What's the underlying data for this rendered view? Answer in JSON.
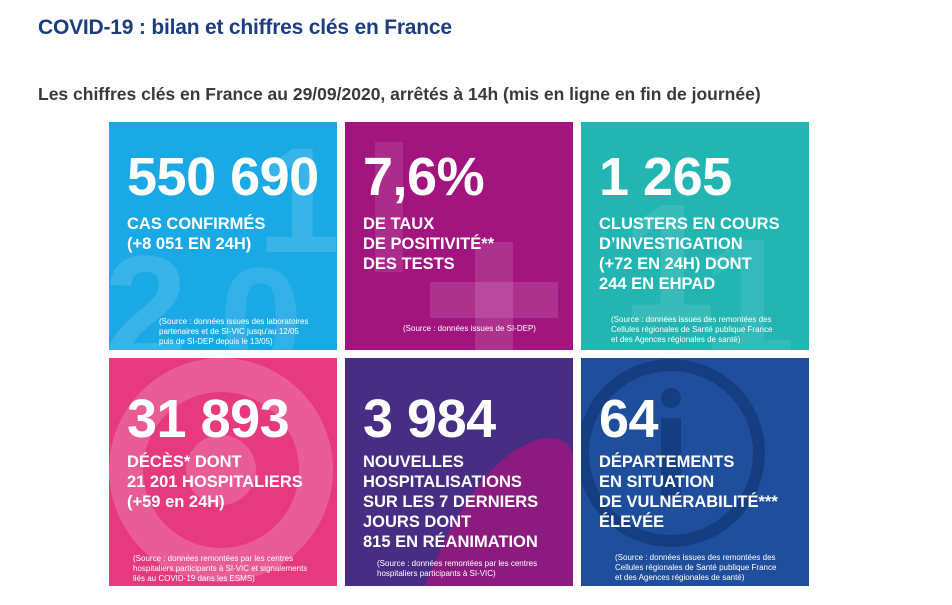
{
  "page": {
    "title": "COVID-19 : bilan et chiffres clés en France",
    "subtitle": "Les chiffres clés en France au 29/09/2020, arrêtés à 14h (mis en ligne en fin de journée)"
  },
  "colors": {
    "title": "#1d3e7e",
    "cases": "#1ba9e6",
    "positivity": "#a2157e",
    "clusters": "#23b5b2",
    "deaths": "#e6397e",
    "hospitalisations": "#482d84",
    "departments": "#1f4f9c"
  },
  "cards": [
    {
      "value": "550 690",
      "lines": [
        "CAS CONFIRMÉS",
        "(+8 051 EN 24H)"
      ],
      "source": [
        "(Source : données issues des laboratoires",
        "partenaires et de SI-VIC jusqu'au 12/05",
        "puis de SI-DEP depuis le 13/05)"
      ]
    },
    {
      "value": "7,6%",
      "lines": [
        "DE TAUX",
        "DE POSITIVITÉ**",
        "DES TESTS"
      ],
      "source": [
        "(Source : données issues de SI-DEP)"
      ]
    },
    {
      "value": "1 265",
      "lines": [
        "CLUSTERS EN COURS",
        "D’INVESTIGATION",
        "(+72 EN 24H) DONT",
        "244 EN EHPAD"
      ],
      "source": [
        "(Source : données issues des remontées des",
        "Cellules régionales de Santé publique France",
        "et des Agences régionales de santé)"
      ]
    },
    {
      "value": "31 893",
      "lines": [
        "DÉCÈS* DONT",
        "21 201 HOSPITALIERS",
        "(+59 en 24H)"
      ],
      "source": [
        "(Source : données remontées par les centres",
        "hospitaliers participants à SI-VIC et signalements",
        "liés au COVID-19 dans les ESMS)"
      ]
    },
    {
      "value": "3 984",
      "lines": [
        "NOUVELLES",
        "HOSPITALISATIONS",
        "SUR LES 7 DERNIERS",
        "JOURS DONT",
        "815 EN RÉANIMATION"
      ],
      "source": [
        "(Source : données remontées par les centres",
        "hospitaliers participants à SI-VIC)"
      ]
    },
    {
      "value": "64",
      "lines": [
        "DÉPARTEMENTS",
        "EN SITUATION",
        "DE VULNÉRABILITÉ***",
        "ÉLEVÉE"
      ],
      "source": [
        "(Source : données issues des remontées des",
        "Cellules régionales de Santé publique France",
        "et des Agences régionales de santé)"
      ]
    }
  ]
}
